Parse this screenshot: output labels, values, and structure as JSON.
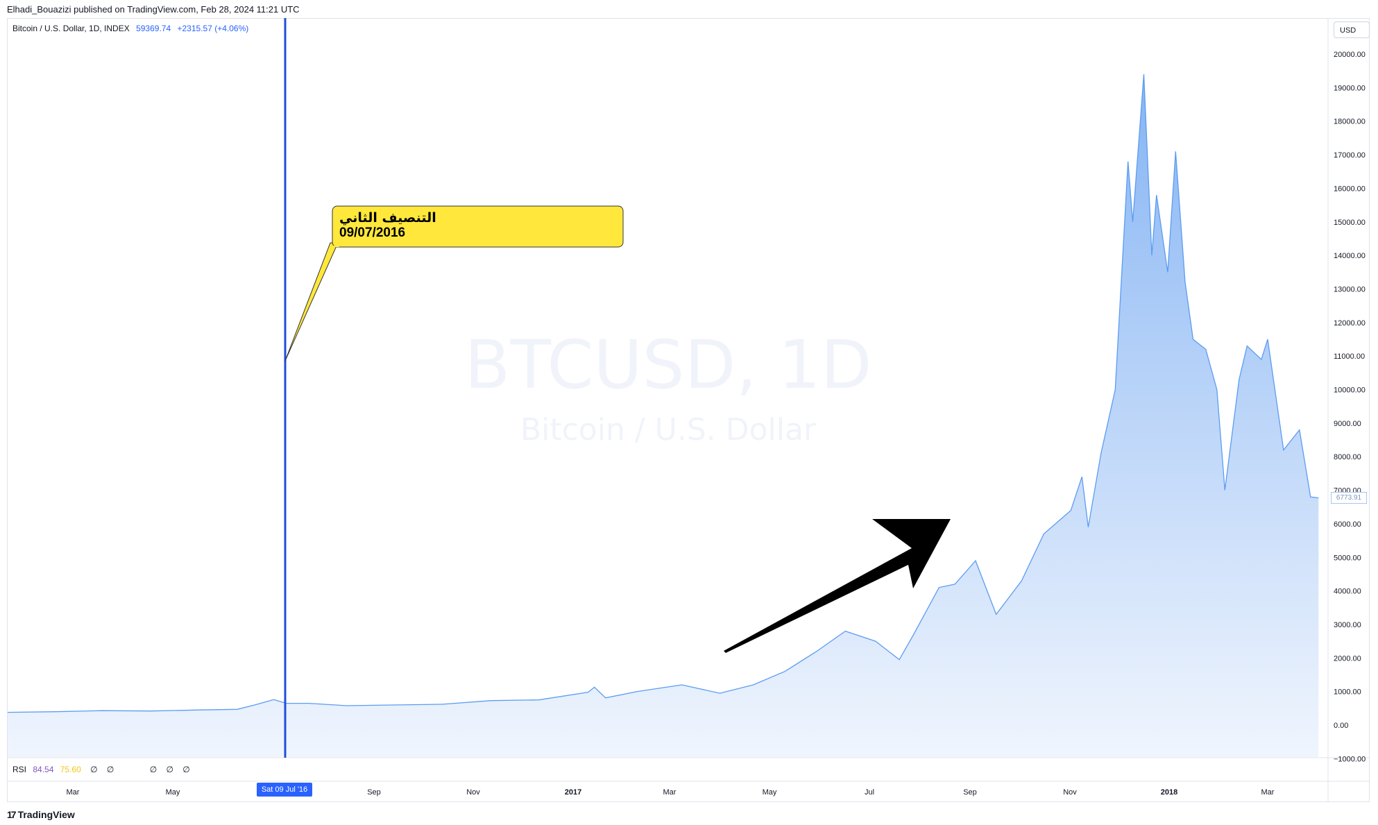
{
  "header": {
    "published_line": "Elhadi_Bouazizi published on TradingView.com, Feb 28, 2024 11:21 UTC"
  },
  "legend": {
    "symbol_desc": "Bitcoin / U.S. Dollar, 1D, INDEX",
    "last_value": "59369.74",
    "change": "+2315.57 (+4.06%)"
  },
  "currency_button": "USD",
  "watermark": {
    "ticker": "BTCUSD, 1D",
    "name": "Bitcoin / U.S. Dollar"
  },
  "annotation": {
    "line1": "التنصيف الثاني",
    "line2": "09/07/2016",
    "bg_color": "#ffe83b"
  },
  "crosshair_date": "Sat 09 Jul '16",
  "last_price_label": "6773.91",
  "rsi": {
    "label": "RSI",
    "v1": "84.54",
    "v2": "75.60",
    "nulls": [
      "∅",
      "∅",
      "∅",
      "∅",
      "∅"
    ]
  },
  "brand": "TradingView",
  "colors": {
    "line": "#5b9cf2",
    "area_top": "#7fb0f3",
    "area_bottom": "#eef4fd",
    "vline": "#1d4fd8",
    "arrow": "#000000"
  },
  "chart_data": {
    "type": "area",
    "ylim": [
      -1000,
      21000
    ],
    "yticks": [
      "-1000.00",
      "0.00",
      "1000.00",
      "2000.00",
      "3000.00",
      "4000.00",
      "5000.00",
      "6000.00",
      "7000.00",
      "8000.00",
      "9000.00",
      "10000.00",
      "11000.00",
      "12000.00",
      "13000.00",
      "14000.00",
      "15000.00",
      "16000.00",
      "17000.00",
      "18000.00",
      "19000.00",
      "20000.00"
    ],
    "xticks": [
      "Mar",
      "May",
      "Sep",
      "Nov",
      "2017",
      "Mar",
      "May",
      "Jul",
      "Sep",
      "Nov",
      "2018",
      "Mar"
    ],
    "xtick_bold": [
      false,
      false,
      false,
      false,
      true,
      false,
      false,
      false,
      false,
      false,
      true,
      false
    ],
    "series": [
      {
        "x": [
          "2016-01-15",
          "2016-02-01",
          "2016-03-01",
          "2016-04-01",
          "2016-05-01",
          "2016-05-25",
          "2016-06-05",
          "2016-06-17",
          "2016-06-25",
          "2016-07-09",
          "2016-08-02",
          "2016-09-01",
          "2016-10-01",
          "2016-11-01",
          "2016-12-01",
          "2017-01-01",
          "2017-01-05",
          "2017-01-12",
          "2017-02-01",
          "2017-03-01",
          "2017-03-25",
          "2017-04-15",
          "2017-05-05",
          "2017-05-25",
          "2017-06-12",
          "2017-07-01",
          "2017-07-16",
          "2017-07-25",
          "2017-08-10",
          "2017-08-20",
          "2017-09-02",
          "2017-09-15",
          "2017-10-01",
          "2017-10-15",
          "2017-11-01",
          "2017-11-08",
          "2017-11-12",
          "2017-11-20",
          "2017-11-29",
          "2017-12-07",
          "2017-12-10",
          "2017-12-17",
          "2017-12-22",
          "2017-12-25",
          "2018-01-01",
          "2018-01-06",
          "2018-01-12",
          "2018-01-17",
          "2018-01-25",
          "2018-02-01",
          "2018-02-06",
          "2018-02-15",
          "2018-02-20",
          "2018-03-01",
          "2018-03-05",
          "2018-03-15",
          "2018-03-25",
          "2018-04-01",
          "2018-04-06"
        ],
        "values": [
          380,
          400,
          430,
          420,
          450,
          470,
          600,
          760,
          650,
          650,
          580,
          600,
          620,
          730,
          750,
          980,
          1130,
          810,
          1000,
          1200,
          950,
          1200,
          1600,
          2200,
          2800,
          2500,
          1950,
          2700,
          4100,
          4200,
          4900,
          3300,
          4300,
          5700,
          6400,
          7400,
          5900,
          8100,
          10000,
          16800,
          15000,
          19400,
          14000,
          15800,
          13500,
          17100,
          13200,
          11500,
          11200,
          10000,
          7000,
          10300,
          11300,
          10900,
          11500,
          8200,
          8800,
          6800,
          6773.91
        ]
      }
    ],
    "xlim": [
      "2016-01-01",
      "2018-04-12"
    ]
  }
}
